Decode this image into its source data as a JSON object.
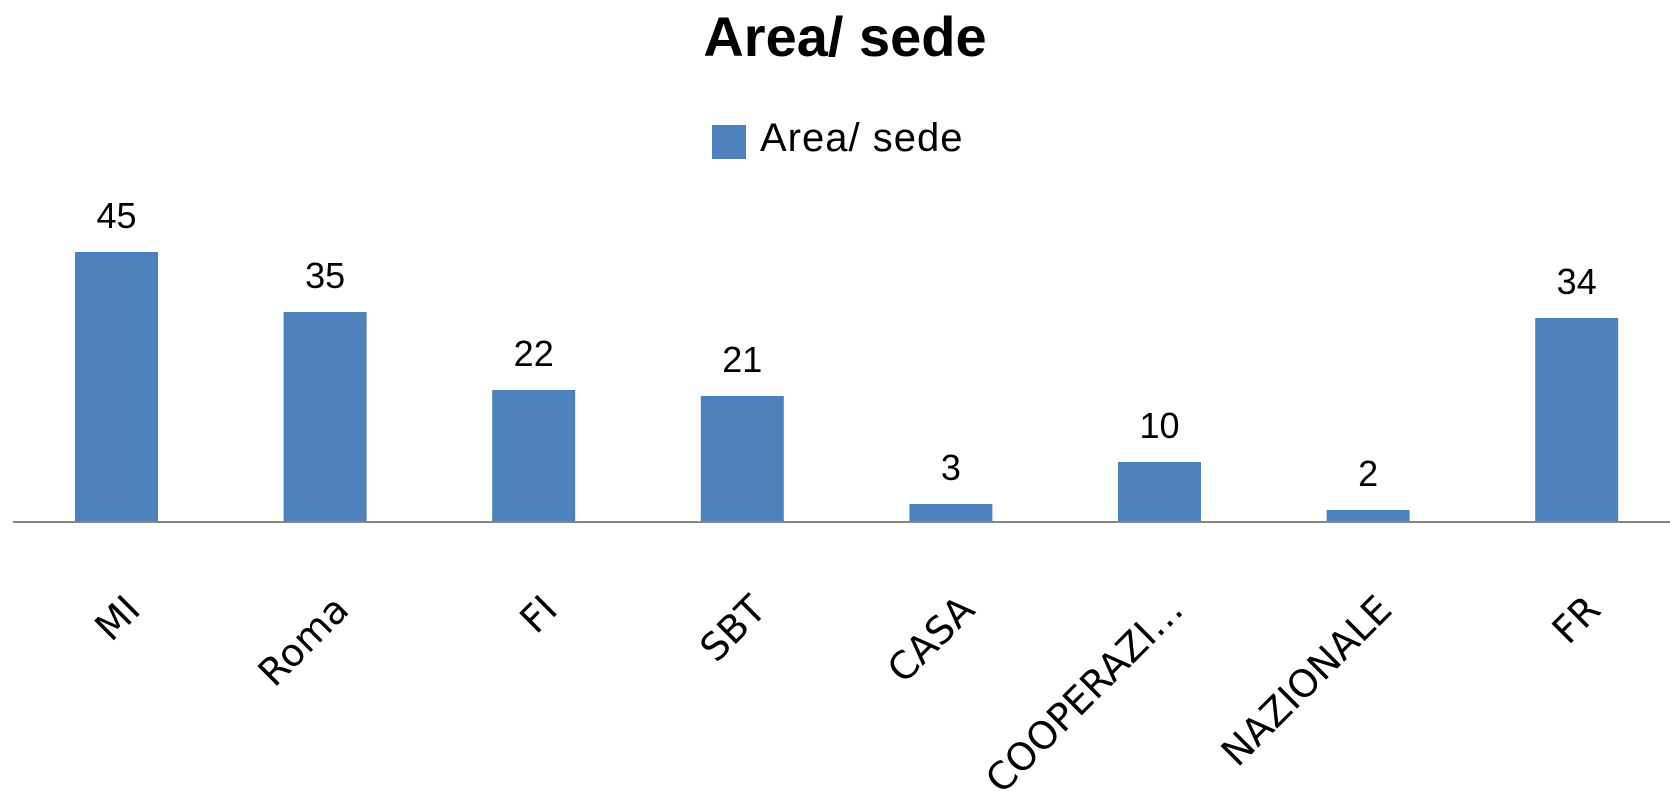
{
  "chart_data": {
    "type": "bar",
    "title": "Area/ sede",
    "categories": [
      "MI",
      "Roma",
      "FI",
      "SBT",
      "CASA",
      "COOPERAZI…",
      "NAZIONALE",
      "FR"
    ],
    "series": [
      {
        "name": "Area/ sede",
        "values": [
          45,
          35,
          22,
          21,
          3,
          10,
          2,
          34
        ]
      }
    ],
    "data_labels": true,
    "legend_position": "top",
    "grid": false,
    "bar_color": "#4f81bd",
    "axis_color": "#868686",
    "ylim": [
      0,
      45
    ]
  }
}
